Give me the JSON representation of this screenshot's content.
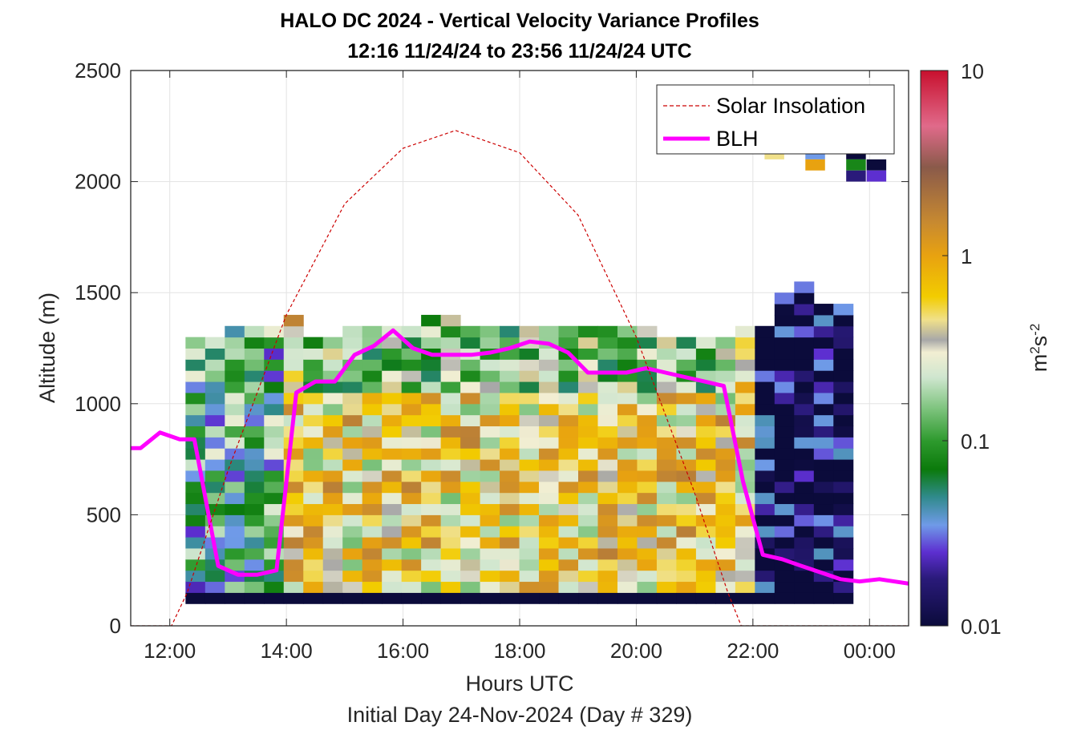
{
  "chart_data": {
    "type": "heatmap",
    "title": "HALO DC 2024 - Vertical Velocity Variance Profiles",
    "subtitle": "12:16 11/24/24 to 23:56 11/24/24  UTC",
    "xlabel": "Hours UTC",
    "ylabel": "Altitude (m)",
    "footnote": "Initial Day 24-Nov-2024 (Day # 329)",
    "colorbar": {
      "label_base": "m",
      "label_sup1": "2",
      "label_mid": "s",
      "label_sup2": "-2",
      "scale": "log",
      "range": [
        0.01,
        10
      ],
      "tick_labels": [
        "0.01",
        "0.1",
        "1",
        "10"
      ],
      "colormap_stops": [
        {
          "value": 0.01,
          "color": "#0b0b3b"
        },
        {
          "value": 0.018,
          "color": "#2a1a7a"
        },
        {
          "value": 0.025,
          "color": "#5d2fd0"
        },
        {
          "value": 0.035,
          "color": "#6f9ae8"
        },
        {
          "value": 0.05,
          "color": "#2f8a8a"
        },
        {
          "value": 0.07,
          "color": "#0b7a0b"
        },
        {
          "value": 0.1,
          "color": "#2e9a2e"
        },
        {
          "value": 0.15,
          "color": "#7fc47f"
        },
        {
          "value": 0.22,
          "color": "#cfe6cf"
        },
        {
          "value": 0.3,
          "color": "#f2eed2"
        },
        {
          "value": 0.35,
          "color": "#a8a8a8"
        },
        {
          "value": 0.45,
          "color": "#f0e08a"
        },
        {
          "value": 0.6,
          "color": "#f2cc00"
        },
        {
          "value": 1.0,
          "color": "#e8a210"
        },
        {
          "value": 1.5,
          "color": "#c88a30"
        },
        {
          "value": 3.0,
          "color": "#8a5a4a"
        },
        {
          "value": 5.0,
          "color": "#e06a8a"
        },
        {
          "value": 10.0,
          "color": "#c8102e"
        }
      ]
    },
    "xaxis": {
      "range_hours": [
        11.33,
        24.67
      ],
      "tick_hours": [
        12,
        14,
        16,
        18,
        20,
        22,
        24
      ],
      "tick_labels": [
        "12:00",
        "14:00",
        "16:00",
        "18:00",
        "20:00",
        "22:00",
        "00:00"
      ]
    },
    "yaxis": {
      "range": [
        0,
        2500
      ],
      "ticks": [
        0,
        500,
        1000,
        1500,
        2000,
        2500
      ],
      "tick_labels": [
        "0",
        "500",
        "1000",
        "1500",
        "2000",
        "2500"
      ]
    },
    "grid": true,
    "legend": {
      "placement": "top-right",
      "entries": [
        {
          "label": "Solar Insolation",
          "color": "#cc0000",
          "style": "dashed"
        },
        {
          "label": "BLH",
          "color": "#ff00ff",
          "style": "solid"
        }
      ]
    },
    "heatmap": {
      "columns": 34,
      "time_start_hours": 12.27,
      "time_step_hours": 0.3367,
      "alt_bottom": 100,
      "alt_step": 50,
      "column_tops": [
        1300,
        1300,
        1350,
        1350,
        1350,
        1400,
        1300,
        1300,
        1350,
        1350,
        1350,
        1350,
        1400,
        1400,
        1350,
        1350,
        1350,
        1350,
        1350,
        1350,
        1350,
        1350,
        1350,
        1350,
        1300,
        1300,
        1300,
        1300,
        1350,
        1350,
        1500,
        1550,
        1450,
        1450
      ],
      "approx_values_by_zone": {
        "ground_row_100_150m": 0.01,
        "morning_left_cols_below_1300m": 0.08,
        "daytime_mixed_layer_14_21h": 0.5,
        "evening_right_cols_after_22h": 0.012
      },
      "isolated_high_cells": [
        {
          "hour": 22.2,
          "alt": 2100,
          "value": 0.45
        },
        {
          "hour": 22.9,
          "alt": 2100,
          "value": 0.035
        },
        {
          "hour": 22.9,
          "alt": 2050,
          "value": 1.0
        },
        {
          "hour": 23.6,
          "alt": 2100,
          "value": 0.01
        },
        {
          "hour": 23.6,
          "alt": 2050,
          "value": 0.08
        },
        {
          "hour": 23.6,
          "alt": 2000,
          "value": 0.018
        },
        {
          "hour": 23.95,
          "alt": 2050,
          "value": 0.01
        },
        {
          "hour": 23.95,
          "alt": 2000,
          "value": 0.025
        }
      ]
    },
    "series": [
      {
        "name": "BLH",
        "x_hours": [
          11.33,
          11.5,
          11.83,
          12.17,
          12.42,
          12.83,
          13.17,
          13.5,
          13.83,
          14.17,
          14.5,
          14.83,
          15.17,
          15.5,
          15.83,
          16.17,
          16.5,
          16.83,
          17.17,
          17.5,
          17.83,
          18.17,
          18.5,
          18.83,
          19.17,
          19.5,
          19.83,
          20.17,
          20.5,
          20.83,
          21.17,
          21.5,
          21.83,
          22.17,
          22.5,
          22.83,
          23.17,
          23.5,
          23.83,
          24.17,
          24.67
        ],
        "y": [
          800,
          800,
          870,
          840,
          840,
          270,
          230,
          230,
          250,
          1050,
          1100,
          1100,
          1220,
          1260,
          1330,
          1250,
          1220,
          1220,
          1220,
          1230,
          1250,
          1280,
          1270,
          1230,
          1140,
          1140,
          1140,
          1160,
          1140,
          1120,
          1100,
          1080,
          650,
          320,
          300,
          270,
          240,
          210,
          200,
          210,
          190
        ]
      },
      {
        "name": "Solar Insolation",
        "x_hours": [
          11.33,
          12.03,
          12.3,
          13.0,
          14.0,
          15.0,
          16.0,
          16.9,
          18.0,
          19.0,
          20.0,
          21.0,
          21.57,
          21.8,
          24.67
        ],
        "y": [
          0,
          0,
          150,
          700,
          1400,
          1900,
          2150,
          2230,
          2130,
          1850,
          1300,
          600,
          150,
          0,
          0
        ]
      }
    ]
  }
}
